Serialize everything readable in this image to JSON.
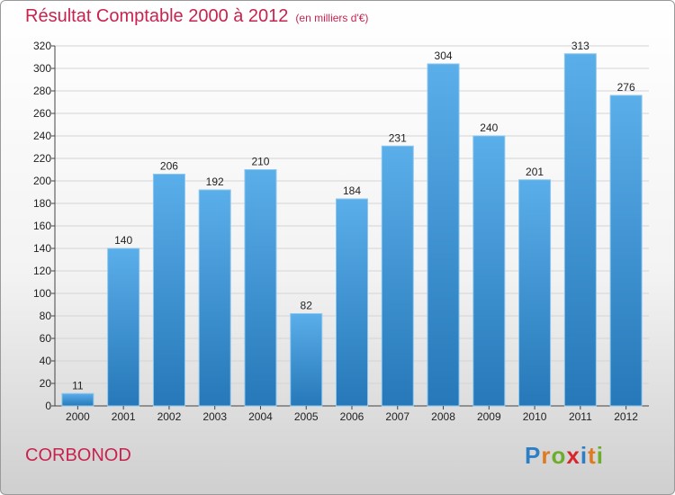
{
  "title": "Résultat Comptable 2000 à 2012",
  "subtitle": "(en milliers d'€)",
  "commune": "CORBONOD",
  "logo": {
    "letters": [
      "P",
      "r",
      "o",
      "x",
      "i",
      "t",
      "i"
    ],
    "colors": [
      "#2c7fc6",
      "#e07a1f",
      "#6cae2b",
      "#d8262b",
      "#2c7fc6",
      "#e07a1f",
      "#6cae2b"
    ]
  },
  "colors": {
    "bar_top": "#5aaee9",
    "bar_bottom": "#2678b8",
    "grid": "#d4d4d4",
    "accent": "#c8234f"
  },
  "chart_data": {
    "type": "bar",
    "title": "Résultat Comptable 2000 à 2012",
    "subtitle": "(en milliers d'€)",
    "categories": [
      "2000",
      "2001",
      "2002",
      "2003",
      "2004",
      "2005",
      "2006",
      "2007",
      "2008",
      "2009",
      "2010",
      "2011",
      "2012"
    ],
    "values": [
      11,
      140,
      206,
      192,
      210,
      82,
      184,
      231,
      304,
      240,
      201,
      313,
      276
    ],
    "ylim": [
      0,
      320
    ],
    "yticks": [
      0,
      20,
      40,
      60,
      80,
      100,
      120,
      140,
      160,
      180,
      200,
      220,
      240,
      260,
      280,
      300,
      320
    ],
    "grid": true,
    "data_labels": true
  }
}
